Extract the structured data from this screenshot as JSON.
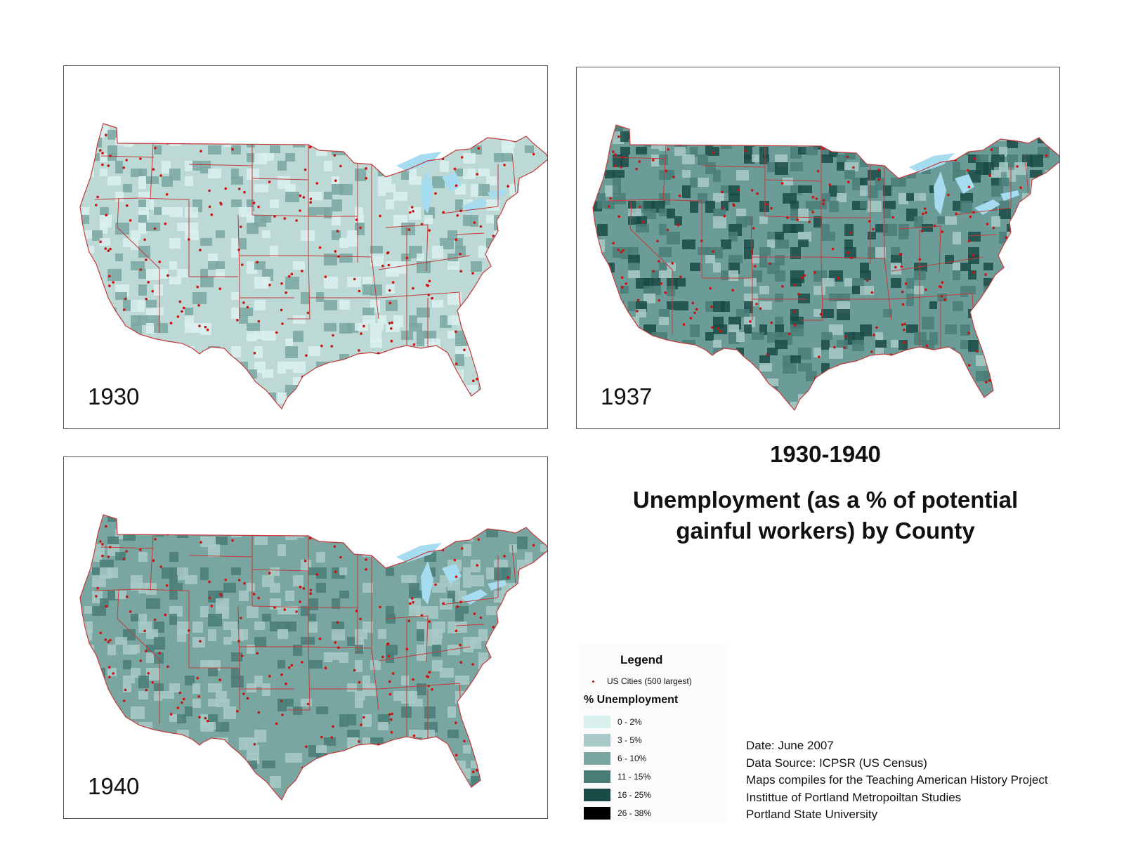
{
  "title": {
    "years": "1930-1940",
    "main_line1": "Unemployment (as a % of potential",
    "main_line2": "gainful workers) by County"
  },
  "maps": [
    {
      "year": "1930",
      "base_color": "#bcd9d6",
      "dark_color": "#5a9390",
      "dark_share": 0.3
    },
    {
      "year": "1937",
      "base_color": "#6c9c98",
      "dark_color": "#1c5451",
      "dark_share": 0.45
    },
    {
      "year": "1940",
      "base_color": "#7aa6a2",
      "dark_color": "#3f7571",
      "dark_share": 0.35
    }
  ],
  "legend": {
    "title": "Legend",
    "cities_label": "US Cities (500 largest)",
    "heading": "% Unemployment",
    "classes": [
      {
        "label": "0 - 2%",
        "color": "#daf0ee"
      },
      {
        "label": "3 - 5%",
        "color": "#a9cac7"
      },
      {
        "label": "6 - 10%",
        "color": "#7aa6a2"
      },
      {
        "label": "11 - 15%",
        "color": "#4a7c78"
      },
      {
        "label": "16 - 25%",
        "color": "#1a4b47"
      },
      {
        "label": "26 - 38%",
        "color": "#000000"
      }
    ]
  },
  "credits": {
    "date": "Date:  June 2007",
    "source": "Data Source: ICPSR (US Census)",
    "project": "Maps compiles for the Teaching American History Project",
    "institute": "Instittue of Portland Metropoiltan Studies",
    "university": "Portland State University"
  },
  "colors": {
    "state_border": "#c23b3b",
    "city_dot": "#cc1111",
    "lakes": "#a6dcef"
  }
}
